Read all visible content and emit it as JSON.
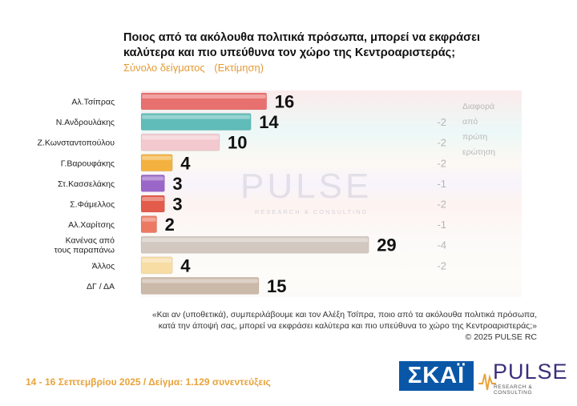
{
  "header": {
    "title": "Ποιος από τα ακόλουθα πολιτικά πρόσωπα, μπορεί να εκφράσει καλύτερα και πιο υπεύθυνα τον χώρο της Κεντροαριστεράς;",
    "subtitle_left": "Σύνολο δείγματος",
    "subtitle_right": "(Εκτίμηση)"
  },
  "diff_header": [
    "Διαφορά",
    "από",
    "πρώτη",
    "ερώτηση"
  ],
  "watermark": {
    "text": "PULSE",
    "sub": "RESEARCH & CONSULTING"
  },
  "chart_data": {
    "type": "bar",
    "orientation": "horizontal",
    "categories": [
      "Αλ.Τσίπρας",
      "Ν.Ανδρουλάκης",
      "Ζ.Κωνσταντοπούλου",
      "Γ.Βαρουφάκης",
      "Στ.Κασσελάκης",
      "Σ.Φάμελλος",
      "Αλ.Χαρίτσης",
      "Κανένας από τους παραπάνω",
      "Άλλος",
      "ΔΓ / ΔΑ"
    ],
    "category_lines": [
      [
        "Αλ.Τσίπρας"
      ],
      [
        "Ν.Ανδρουλάκης"
      ],
      [
        "Ζ.Κωνσταντοπούλου"
      ],
      [
        "Γ.Βαρουφάκης"
      ],
      [
        "Στ.Κασσελάκης"
      ],
      [
        "Σ.Φάμελλος"
      ],
      [
        "Αλ.Χαρίτσης"
      ],
      [
        "Κανένας από",
        "τους παραπάνω"
      ],
      [
        "Άλλος"
      ],
      [
        "ΔΓ / ΔΑ"
      ]
    ],
    "values": [
      16,
      14,
      10,
      4,
      3,
      3,
      2,
      29,
      4,
      15
    ],
    "difference": [
      "",
      "-2",
      "-2",
      "-2",
      "-1",
      "-2",
      "-1",
      "-4",
      "-2",
      ""
    ],
    "colors": [
      "#e8716f",
      "#5fbcb8",
      "#f3c9cf",
      "#f3b23f",
      "#9a66c8",
      "#e35b4a",
      "#ec7a63",
      "#d3c8bf",
      "#f7dca3",
      "#cbb9a9"
    ],
    "xlim": [
      0,
      32
    ],
    "grid": false,
    "title": "Ποιος από τα ακόλουθα πολιτικά πρόσωπα, μπορεί να εκφράσει καλύτερα και πιο υπεύθυνα τον χώρο της Κεντροαριστεράς;"
  },
  "question_note": {
    "line1": "«Και αν (υποθετικά), συμπεριλάβουμε και τον Αλέξη Τσίπρα, ποιο από τα ακόλουθα πολιτικά πρόσωπα,",
    "line2": "κατά την άποψή σας, μπορεί να εκφράσει καλύτερα και πιο υπεύθυνα το χώρο της Κεντροαριστεράς;»",
    "copyright": "© 2025 PULSE RC"
  },
  "footer": {
    "info": "14 - 16 Σεπτεμβρίου 2025  /  Δείγμα:  1.129 συνεντεύξεις",
    "skai_logo": "ΣΚΑΪ",
    "pulse_logo": "PULSE",
    "pulse_sub": "RESEARCH & CONSULTING"
  }
}
